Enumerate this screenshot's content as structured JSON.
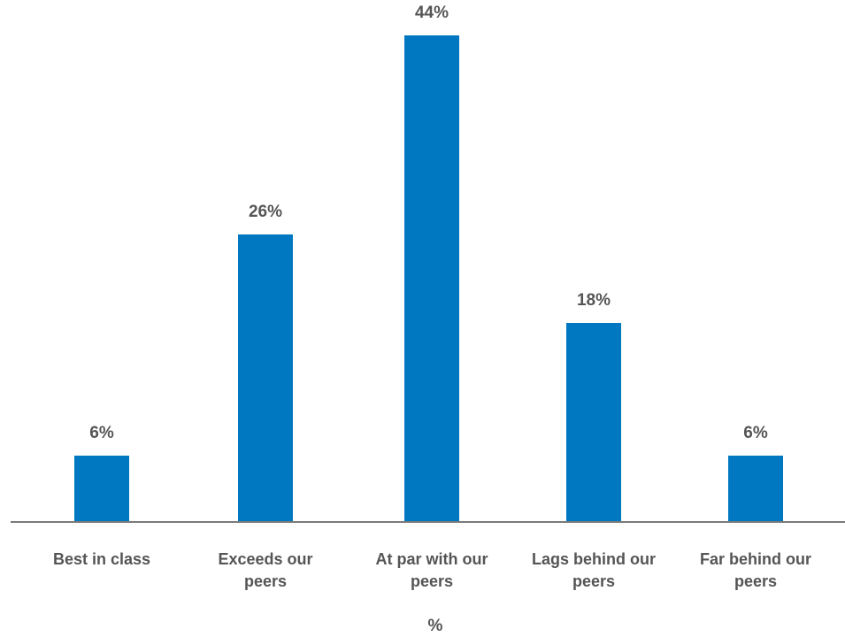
{
  "chart_data": {
    "type": "bar",
    "categories": [
      [
        "Best in class"
      ],
      [
        "Exceeds our",
        "peers"
      ],
      [
        "At par with our",
        "peers"
      ],
      [
        "Lags behind our",
        "peers"
      ],
      [
        "Far behind our",
        "peers"
      ]
    ],
    "values": [
      6,
      26,
      44,
      18,
      6
    ],
    "data_labels": [
      "6%",
      "26%",
      "44%",
      "18%",
      "6%"
    ],
    "xlabel": "%",
    "ylabel": "",
    "ylim": [
      0,
      44
    ],
    "grid": false,
    "legend": "none",
    "bar_color": "#0078C1",
    "axis_color": "#7a7a7a",
    "text_color": "#555555"
  }
}
